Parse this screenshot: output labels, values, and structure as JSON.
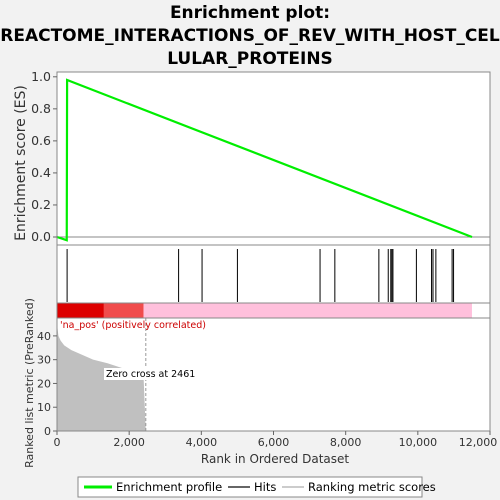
{
  "title_lines": [
    "Enrichment plot:",
    "REACTOME_INTERACTIONS_OF_REV_WITH_HOST_CEL",
    "LULAR_PROTEINS"
  ],
  "colors": {
    "enrichment_line": "#00ee00",
    "hits": "#000000",
    "metric_fill": "#c0c0c0",
    "bar_red_dark": "#dd0000",
    "bar_red_light": "#f04c4c",
    "bar_pink": "#ffc0dc",
    "annotation_red": "#cc0000"
  },
  "annotations": {
    "na_pos": "'na_pos' (positively correlated)",
    "zero_cross": "Zero cross at 2461"
  },
  "legend": {
    "enrichment_profile": "Enrichment profile",
    "hits": "Hits",
    "ranking_metric": "Ranking metric scores"
  },
  "chart_data": [
    {
      "type": "line",
      "name": "enrichment",
      "ylabel": "Enrichment score (ES)",
      "xlim": [
        0,
        12000
      ],
      "ylim": [
        -0.05,
        1.03
      ],
      "yticks": [
        0.0,
        0.2,
        0.4,
        0.6,
        0.8,
        1.0
      ],
      "ytick_labels": [
        "0.0",
        "0.2",
        "0.4",
        "0.6",
        "0.8",
        "1.0"
      ],
      "x": [
        0,
        270,
        280,
        11500
      ],
      "y": [
        0.0,
        -0.02,
        0.98,
        0.0
      ],
      "grid": false
    },
    {
      "type": "hits",
      "name": "hits",
      "positions": [
        280,
        3370,
        4020,
        5000,
        7290,
        7700,
        8920,
        9180,
        9250,
        9280,
        9310,
        9960,
        10380,
        10420,
        10500,
        10950,
        10990
      ]
    },
    {
      "type": "area",
      "name": "ranking_metric",
      "xlabel": "Rank in Ordered Dataset",
      "ylabel": "Ranked list metric (PreRanked)",
      "xlim": [
        0,
        12000
      ],
      "ylim": [
        0,
        45
      ],
      "xticks": [
        0,
        2000,
        4000,
        6000,
        8000,
        10000,
        12000
      ],
      "xtick_labels": [
        "0",
        "2,000",
        "4,000",
        "6,000",
        "8,000",
        "10,000",
        "12,000"
      ],
      "yticks": [
        0,
        10,
        20,
        30,
        40
      ],
      "ytick_labels": [
        "0",
        "10",
        "20",
        "30",
        "40"
      ],
      "x": [
        0,
        40,
        100,
        200,
        400,
        700,
        1000,
        1400,
        1800,
        2100,
        2300,
        2400,
        2461
      ],
      "y": [
        45,
        40,
        38,
        36,
        34,
        32,
        30,
        28.5,
        26.5,
        24.5,
        23.5,
        22.5,
        0
      ],
      "zero_cross": 2461,
      "bar_segments": [
        {
          "from": 0,
          "to": 1300,
          "color": "bar_red_dark"
        },
        {
          "from": 1300,
          "to": 2400,
          "color": "bar_red_light"
        },
        {
          "from": 2400,
          "to": 11500,
          "color": "bar_pink"
        }
      ]
    }
  ]
}
